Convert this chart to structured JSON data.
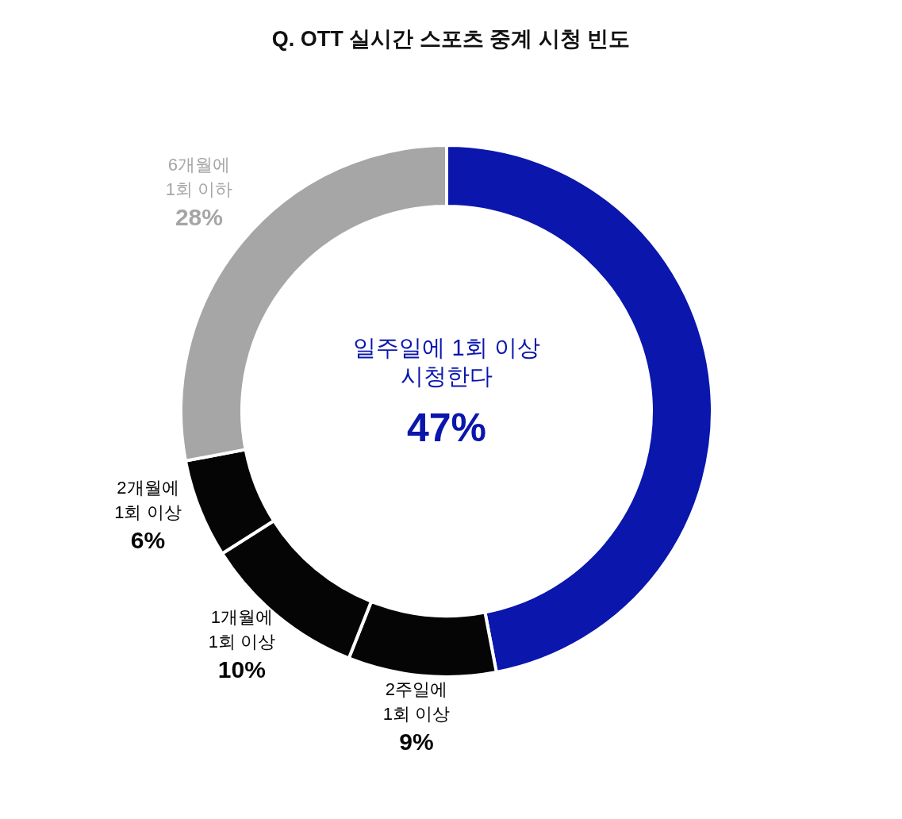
{
  "chart_data": {
    "type": "donut",
    "title": "Q. OTT 실시간 스포츠 중계 시청 빈도",
    "categories": [
      "일주일에 1회 이상\n시청한다",
      "2주일에\n1회 이상",
      "1개월에\n1회 이상",
      "2개월에\n1회 이상",
      "6개월에\n1회 이하"
    ],
    "values": [
      47,
      9,
      10,
      6,
      28
    ],
    "value_labels": [
      "47%",
      "9%",
      "10%",
      "6%",
      "28%"
    ],
    "colors": [
      "#0a16ac",
      "#050505",
      "#050505",
      "#050505",
      "#a6a6a6"
    ]
  }
}
